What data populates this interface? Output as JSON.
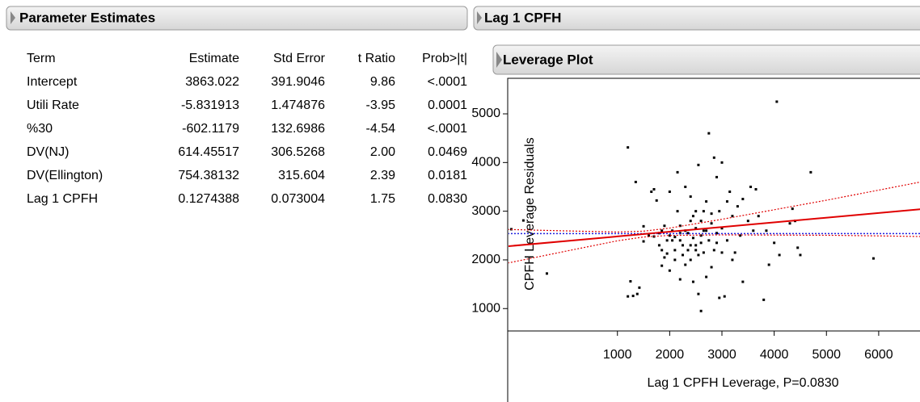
{
  "left_panel": {
    "title": "Parameter Estimates"
  },
  "right_panel": {
    "title": "Lag 1 CPFH",
    "subtitle": "Leverage Plot"
  },
  "table": {
    "columns": [
      "Term",
      "Estimate",
      "Std Error",
      "t Ratio",
      "Prob>|t|"
    ],
    "rows": [
      [
        "Intercept",
        "3863.022",
        "391.9046",
        "9.86",
        "<.0001"
      ],
      [
        "Utili Rate",
        "-5.831913",
        "1.474876",
        "-3.95",
        "0.0001"
      ],
      [
        "%30",
        "-602.1179",
        "132.6986",
        "-4.54",
        "<.0001"
      ],
      [
        "DV(NJ)",
        "614.45517",
        "306.5268",
        "2.00",
        "0.0469"
      ],
      [
        "DV(Ellington)",
        "754.38132",
        "315.604",
        "2.39",
        "0.0181"
      ],
      [
        "Lag 1 CPFH",
        "0.1274388",
        "0.073004",
        "1.75",
        "0.0830"
      ]
    ]
  },
  "chart_data": {
    "type": "scatter",
    "x_label": "Lag 1 CPFH Leverage, P=0.0830",
    "y_label": "CPFH Leverage Residuals",
    "xlim": [
      -1100,
      7100
    ],
    "ylim": [
      540,
      5730
    ],
    "xticks": [
      1000,
      2000,
      3000,
      4000,
      5000,
      6000
    ],
    "yticks": [
      1000,
      2000,
      3000,
      4000,
      5000
    ],
    "color": "#000000",
    "x": [
      -1030,
      -800,
      -350,
      1200,
      1350,
      1200,
      1250,
      1380,
      1420,
      1300,
      1500,
      1500,
      1650,
      1700,
      1750,
      1700,
      1800,
      1800,
      1850,
      1850,
      1900,
      1950,
      1950,
      2000,
      2000,
      2050,
      2100,
      2100,
      2150,
      2150,
      2200,
      2200,
      2250,
      2250,
      2300,
      2300,
      2350,
      2350,
      2400,
      2400,
      2450,
      2450,
      2450,
      2500,
      2500,
      2500,
      2550,
      2550,
      2550,
      2600,
      2600,
      2600,
      2650,
      2650,
      2700,
      2700,
      2750,
      2750,
      2800,
      2800,
      2850,
      2850,
      2900,
      2900,
      2950,
      2950,
      3000,
      3000,
      3050,
      3100,
      3150,
      3200,
      3200,
      3250,
      3300,
      3350,
      3400,
      3400,
      3500,
      3550,
      3600,
      3650,
      3700,
      3800,
      3850,
      3900,
      4000,
      4050,
      4100,
      4300,
      4350,
      4400,
      4450,
      4500,
      4700,
      5900,
      1600,
      1900,
      2000,
      2100,
      2200,
      2300,
      2400,
      2500,
      2600,
      2700,
      2800,
      2900,
      3000,
      3100,
      2200,
      2400,
      2650,
      1850,
      2050
    ],
    "values": [
      2630,
      2810,
      1720,
      4310,
      3600,
      1250,
      1560,
      1300,
      1430,
      1260,
      2690,
      2380,
      3400,
      2480,
      3220,
      3450,
      2550,
      2300,
      1880,
      2200,
      2050,
      2400,
      2130,
      3400,
      1780,
      2600,
      2000,
      2470,
      3800,
      3000,
      2400,
      2700,
      2100,
      2300,
      3500,
      1900,
      2550,
      2200,
      2800,
      2000,
      2900,
      1550,
      2450,
      3000,
      2650,
      2300,
      1300,
      2100,
      3950,
      950,
      2500,
      2800,
      2600,
      2150,
      3200,
      1650,
      4600,
      2400,
      1850,
      2750,
      4100,
      2200,
      3700,
      2550,
      3000,
      1220,
      2650,
      4000,
      1250,
      2400,
      3400,
      2900,
      2000,
      2150,
      3100,
      2500,
      1550,
      3250,
      2800,
      3500,
      2600,
      3450,
      2900,
      1180,
      2600,
      1900,
      2350,
      5250,
      2100,
      2750,
      3050,
      2800,
      2250,
      2100,
      3800,
      2030,
      2500,
      2700,
      2500,
      2200,
      2550,
      2600,
      2300,
      2200,
      2350,
      2600,
      2950,
      2350,
      2150,
      3200,
      1600,
      3300,
      3000,
      2600,
      2400
    ],
    "fit": {
      "color": "#e00000",
      "x": [
        -1100,
        6800
      ],
      "y": [
        2280,
        3040
      ]
    },
    "mean": {
      "color": "#2020e0",
      "value": 2540
    },
    "confidence": {
      "color": "#e00000",
      "x": [
        -1100,
        0,
        1000,
        1500,
        2000,
        3000,
        4000,
        5000,
        6000,
        6800
      ],
      "lower": [
        1935,
        2176,
        2392,
        2470,
        2503,
        2514,
        2510,
        2506,
        2493,
        2480
      ],
      "upper": [
        2625,
        2596,
        2572,
        2590,
        2653,
        2834,
        3030,
        3226,
        3433,
        3600
      ]
    }
  }
}
